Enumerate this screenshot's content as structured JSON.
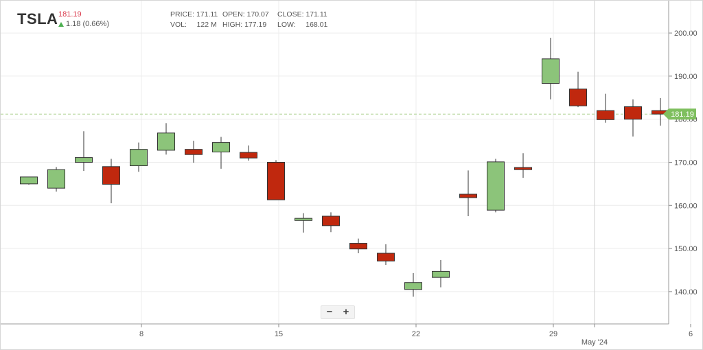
{
  "header": {
    "ticker": "TSLA",
    "last_price": "181.19",
    "change": "1.18 (0.66%)",
    "stats": {
      "price_label": "PRICE:",
      "price": "171.11",
      "open_label": "OPEN:",
      "open": "170.07",
      "close_label": "CLOSE:",
      "close": "171.11",
      "vol_label": "VOL:",
      "vol": "122 M",
      "high_label": "HIGH:",
      "high": "177.19",
      "low_label": "LOW:",
      "low": "168.01"
    }
  },
  "controls": {
    "zoom_out": "−",
    "zoom_in": "+"
  },
  "colors": {
    "up": "#8cc47a",
    "down": "#c0280e",
    "grid": "#ececec",
    "last_price_tag": "#7fbf5f",
    "dash": "#a8cf8c"
  },
  "chart_data": {
    "type": "candlestick",
    "y_range": [
      132.5,
      207.5
    ],
    "y_ticks": [
      140,
      150,
      160,
      170,
      180,
      190,
      200
    ],
    "y_tick_labels": [
      "140.00",
      "150.00",
      "160.00",
      "170.00",
      "180.00",
      "190.00",
      "200.00"
    ],
    "x_ticks": [
      {
        "label": "8",
        "index": 3.95
      },
      {
        "label": "15",
        "index": 8.95
      },
      {
        "label": "22",
        "index": 13.95
      },
      {
        "label": "29",
        "index": 18.95
      },
      {
        "label": "6",
        "index": 23.95
      }
    ],
    "month_divider": {
      "label": "May '24",
      "index": 20.45
    },
    "last_price_value": 181.19,
    "last_price_label": "181.19",
    "candles": [
      {
        "i": -0.15,
        "o": 165.0,
        "h": 166.6,
        "l": 164.8,
        "c": 166.6
      },
      {
        "i": 0.85,
        "o": 164.0,
        "h": 168.9,
        "l": 163.2,
        "c": 168.3
      },
      {
        "i": 1.85,
        "o": 170.0,
        "h": 177.2,
        "l": 168.0,
        "c": 171.1
      },
      {
        "i": 2.85,
        "o": 169.0,
        "h": 170.8,
        "l": 160.5,
        "c": 164.9
      },
      {
        "i": 3.85,
        "o": 169.2,
        "h": 174.6,
        "l": 167.8,
        "c": 173.0
      },
      {
        "i": 4.85,
        "o": 172.8,
        "h": 179.1,
        "l": 171.8,
        "c": 176.8
      },
      {
        "i": 5.85,
        "o": 173.0,
        "h": 175.0,
        "l": 169.9,
        "c": 171.8
      },
      {
        "i": 6.85,
        "o": 172.4,
        "h": 175.9,
        "l": 168.5,
        "c": 174.6
      },
      {
        "i": 7.85,
        "o": 172.3,
        "h": 173.9,
        "l": 170.4,
        "c": 171.0
      },
      {
        "i": 8.85,
        "o": 170.0,
        "h": 170.5,
        "l": 161.3,
        "c": 161.3
      },
      {
        "i": 9.85,
        "o": 156.5,
        "h": 158.2,
        "l": 153.7,
        "c": 157.0
      },
      {
        "i": 10.85,
        "o": 157.5,
        "h": 158.4,
        "l": 153.8,
        "c": 155.3
      },
      {
        "i": 11.85,
        "o": 151.2,
        "h": 152.3,
        "l": 148.9,
        "c": 149.9
      },
      {
        "i": 12.85,
        "o": 148.9,
        "h": 151.0,
        "l": 146.2,
        "c": 147.1
      },
      {
        "i": 13.85,
        "o": 140.5,
        "h": 144.3,
        "l": 138.8,
        "c": 142.1
      },
      {
        "i": 14.85,
        "o": 143.3,
        "h": 147.3,
        "l": 141.0,
        "c": 144.7
      },
      {
        "i": 15.85,
        "o": 162.6,
        "h": 168.1,
        "l": 157.5,
        "c": 161.8
      },
      {
        "i": 16.85,
        "o": 158.9,
        "h": 170.8,
        "l": 158.4,
        "c": 170.1
      },
      {
        "i": 17.85,
        "o": 168.8,
        "h": 172.1,
        "l": 166.4,
        "c": 168.3
      },
      {
        "i": 18.85,
        "o": 188.3,
        "h": 198.9,
        "l": 184.6,
        "c": 194.0
      },
      {
        "i": 19.85,
        "o": 187.0,
        "h": 191.0,
        "l": 182.8,
        "c": 183.1
      },
      {
        "i": 20.85,
        "o": 182.0,
        "h": 185.9,
        "l": 179.2,
        "c": 179.9
      },
      {
        "i": 21.85,
        "o": 182.9,
        "h": 184.6,
        "l": 176.0,
        "c": 180.0
      },
      {
        "i": 22.85,
        "o": 182.0,
        "h": 184.9,
        "l": 178.5,
        "c": 181.19
      }
    ]
  }
}
